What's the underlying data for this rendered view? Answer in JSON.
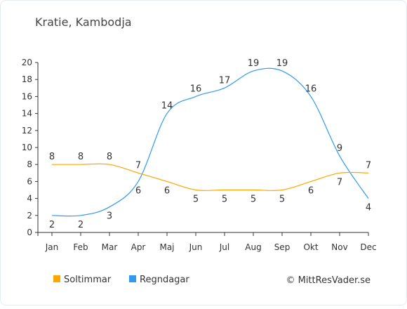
{
  "chart_data": {
    "type": "line",
    "title": "Kratie, Kambodja",
    "categories": [
      "Jan",
      "Feb",
      "Mar",
      "Apr",
      "Maj",
      "Jun",
      "Jul",
      "Aug",
      "Sep",
      "Okt",
      "Nov",
      "Dec"
    ],
    "series": [
      {
        "name": "Soltimmar",
        "color": "#ffa500",
        "values": [
          8,
          8,
          8,
          7,
          6,
          5,
          5,
          5,
          5,
          6,
          7,
          7
        ]
      },
      {
        "name": "Regndagar",
        "color": "#3399ee",
        "values": [
          2,
          2,
          3,
          6,
          14,
          16,
          17,
          19,
          19,
          16,
          9,
          4
        ]
      }
    ],
    "yticks": [
      0,
      2,
      4,
      6,
      8,
      10,
      12,
      14,
      16,
      18,
      20
    ],
    "ylim": [
      0,
      20
    ],
    "grid": false,
    "legend_position": "bottom-left",
    "copyright": "© MittResVader.se"
  },
  "colors": {
    "background": "#ffffff",
    "frame": "#e6ecf4",
    "axis": "#333333",
    "text": "#333333",
    "title": "#444444"
  }
}
